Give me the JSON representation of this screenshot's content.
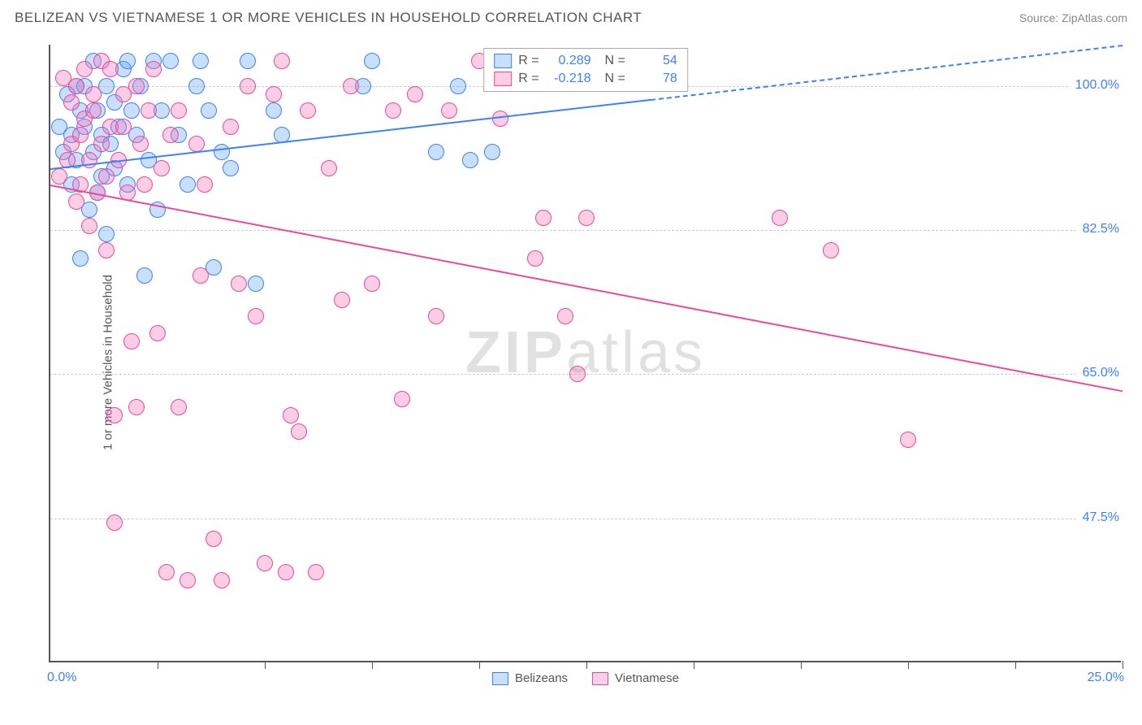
{
  "title": "BELIZEAN VS VIETNAMESE 1 OR MORE VEHICLES IN HOUSEHOLD CORRELATION CHART",
  "source": "Source: ZipAtlas.com",
  "watermark_bold": "ZIP",
  "watermark_light": "atlas",
  "y_axis_title": "1 or more Vehicles in Household",
  "chart": {
    "type": "scatter",
    "xlim": [
      0,
      25
    ],
    "ylim": [
      30,
      105
    ],
    "x_ticks_pct": [
      "0.0%",
      "25.0%"
    ],
    "x_tick_positions": [
      0,
      2.5,
      5,
      7.5,
      10,
      12.5,
      15,
      17.5,
      20,
      22.5,
      25
    ],
    "y_ticks": [
      {
        "val": 100.0,
        "label": "100.0%"
      },
      {
        "val": 82.5,
        "label": "82.5%"
      },
      {
        "val": 65.0,
        "label": "65.0%"
      },
      {
        "val": 47.5,
        "label": "47.5%"
      }
    ],
    "background_color": "#ffffff",
    "grid_color": "#cccccc",
    "axis_color": "#555555",
    "tick_label_color": "#3b82f6",
    "marker_radius": 10,
    "marker_opacity": 0.35,
    "series": [
      {
        "name": "Belizeans",
        "color_fill": "rgba(96,165,250,0.35)",
        "color_stroke": "#3b82f6",
        "R": "0.289",
        "N": "54",
        "trend": {
          "x1": 0,
          "y1": 90,
          "x2": 25,
          "y2": 105,
          "dash_after_x": 14
        },
        "points": [
          [
            0.2,
            95
          ],
          [
            0.3,
            92
          ],
          [
            0.4,
            99
          ],
          [
            0.5,
            88
          ],
          [
            0.5,
            94
          ],
          [
            0.6,
            91
          ],
          [
            0.6,
            100
          ],
          [
            0.7,
            97
          ],
          [
            0.7,
            79
          ],
          [
            0.8,
            95
          ],
          [
            0.8,
            100
          ],
          [
            0.9,
            85
          ],
          [
            1.0,
            92
          ],
          [
            1.0,
            103
          ],
          [
            1.1,
            87
          ],
          [
            1.1,
            97
          ],
          [
            1.2,
            94
          ],
          [
            1.2,
            89
          ],
          [
            1.3,
            100
          ],
          [
            1.3,
            82
          ],
          [
            1.4,
            93
          ],
          [
            1.5,
            98
          ],
          [
            1.5,
            90
          ],
          [
            1.6,
            95
          ],
          [
            1.7,
            102
          ],
          [
            1.8,
            88
          ],
          [
            1.8,
            103
          ],
          [
            1.9,
            97
          ],
          [
            2.0,
            94
          ],
          [
            2.1,
            100
          ],
          [
            2.2,
            77
          ],
          [
            2.3,
            91
          ],
          [
            2.4,
            103
          ],
          [
            2.5,
            85
          ],
          [
            2.6,
            97
          ],
          [
            2.8,
            103
          ],
          [
            3.0,
            94
          ],
          [
            3.2,
            88
          ],
          [
            3.4,
            100
          ],
          [
            3.5,
            103
          ],
          [
            3.7,
            97
          ],
          [
            3.8,
            78
          ],
          [
            4.0,
            92
          ],
          [
            4.2,
            90
          ],
          [
            4.6,
            103
          ],
          [
            4.8,
            76
          ],
          [
            5.2,
            97
          ],
          [
            5.4,
            94
          ],
          [
            7.3,
            100
          ],
          [
            7.5,
            103
          ],
          [
            9.0,
            92
          ],
          [
            9.5,
            100
          ],
          [
            9.8,
            91
          ],
          [
            10.3,
            92
          ]
        ]
      },
      {
        "name": "Vietnamese",
        "color_fill": "rgba(244,114,182,0.35)",
        "color_stroke": "#ec4899",
        "R": "-0.218",
        "N": "78",
        "trend": {
          "x1": 0,
          "y1": 88,
          "x2": 25,
          "y2": 63
        },
        "points": [
          [
            0.2,
            89
          ],
          [
            0.3,
            101
          ],
          [
            0.4,
            91
          ],
          [
            0.5,
            98
          ],
          [
            0.5,
            93
          ],
          [
            0.6,
            86
          ],
          [
            0.6,
            100
          ],
          [
            0.7,
            94
          ],
          [
            0.7,
            88
          ],
          [
            0.8,
            96
          ],
          [
            0.8,
            102
          ],
          [
            0.9,
            91
          ],
          [
            0.9,
            83
          ],
          [
            1.0,
            97
          ],
          [
            1.0,
            99
          ],
          [
            1.1,
            87
          ],
          [
            1.2,
            93
          ],
          [
            1.2,
            103
          ],
          [
            1.3,
            89
          ],
          [
            1.3,
            80
          ],
          [
            1.4,
            95
          ],
          [
            1.4,
            102
          ],
          [
            1.5,
            47
          ],
          [
            1.5,
            60
          ],
          [
            1.6,
            91
          ],
          [
            1.7,
            95
          ],
          [
            1.7,
            99
          ],
          [
            1.8,
            87
          ],
          [
            1.9,
            69
          ],
          [
            2.0,
            100
          ],
          [
            2.0,
            61
          ],
          [
            2.1,
            93
          ],
          [
            2.2,
            88
          ],
          [
            2.3,
            97
          ],
          [
            2.4,
            102
          ],
          [
            2.5,
            70
          ],
          [
            2.6,
            90
          ],
          [
            2.7,
            41
          ],
          [
            2.8,
            94
          ],
          [
            3.0,
            97
          ],
          [
            3.0,
            61
          ],
          [
            3.2,
            40
          ],
          [
            3.4,
            93
          ],
          [
            3.5,
            77
          ],
          [
            3.6,
            88
          ],
          [
            3.8,
            45
          ],
          [
            4.0,
            40
          ],
          [
            4.2,
            95
          ],
          [
            4.4,
            76
          ],
          [
            4.6,
            100
          ],
          [
            4.8,
            72
          ],
          [
            5.0,
            42
          ],
          [
            5.2,
            99
          ],
          [
            5.4,
            103
          ],
          [
            5.5,
            41
          ],
          [
            5.6,
            60
          ],
          [
            5.8,
            58
          ],
          [
            6.0,
            97
          ],
          [
            6.2,
            41
          ],
          [
            6.5,
            90
          ],
          [
            6.8,
            74
          ],
          [
            7.0,
            100
          ],
          [
            7.5,
            76
          ],
          [
            8.0,
            97
          ],
          [
            8.2,
            62
          ],
          [
            8.5,
            99
          ],
          [
            9.0,
            72
          ],
          [
            9.3,
            97
          ],
          [
            10.0,
            103
          ],
          [
            10.5,
            96
          ],
          [
            11.3,
            79
          ],
          [
            11.5,
            84
          ],
          [
            12.0,
            72
          ],
          [
            12.3,
            65
          ],
          [
            12.5,
            84
          ],
          [
            17.0,
            84
          ],
          [
            18.2,
            80
          ],
          [
            20.0,
            57
          ]
        ]
      }
    ],
    "legend_bottom": [
      {
        "label": "Belizeans",
        "fill": "rgba(96,165,250,0.35)",
        "stroke": "#3b82f6"
      },
      {
        "label": "Vietnamese",
        "fill": "rgba(244,114,182,0.35)",
        "stroke": "#ec4899"
      }
    ]
  }
}
